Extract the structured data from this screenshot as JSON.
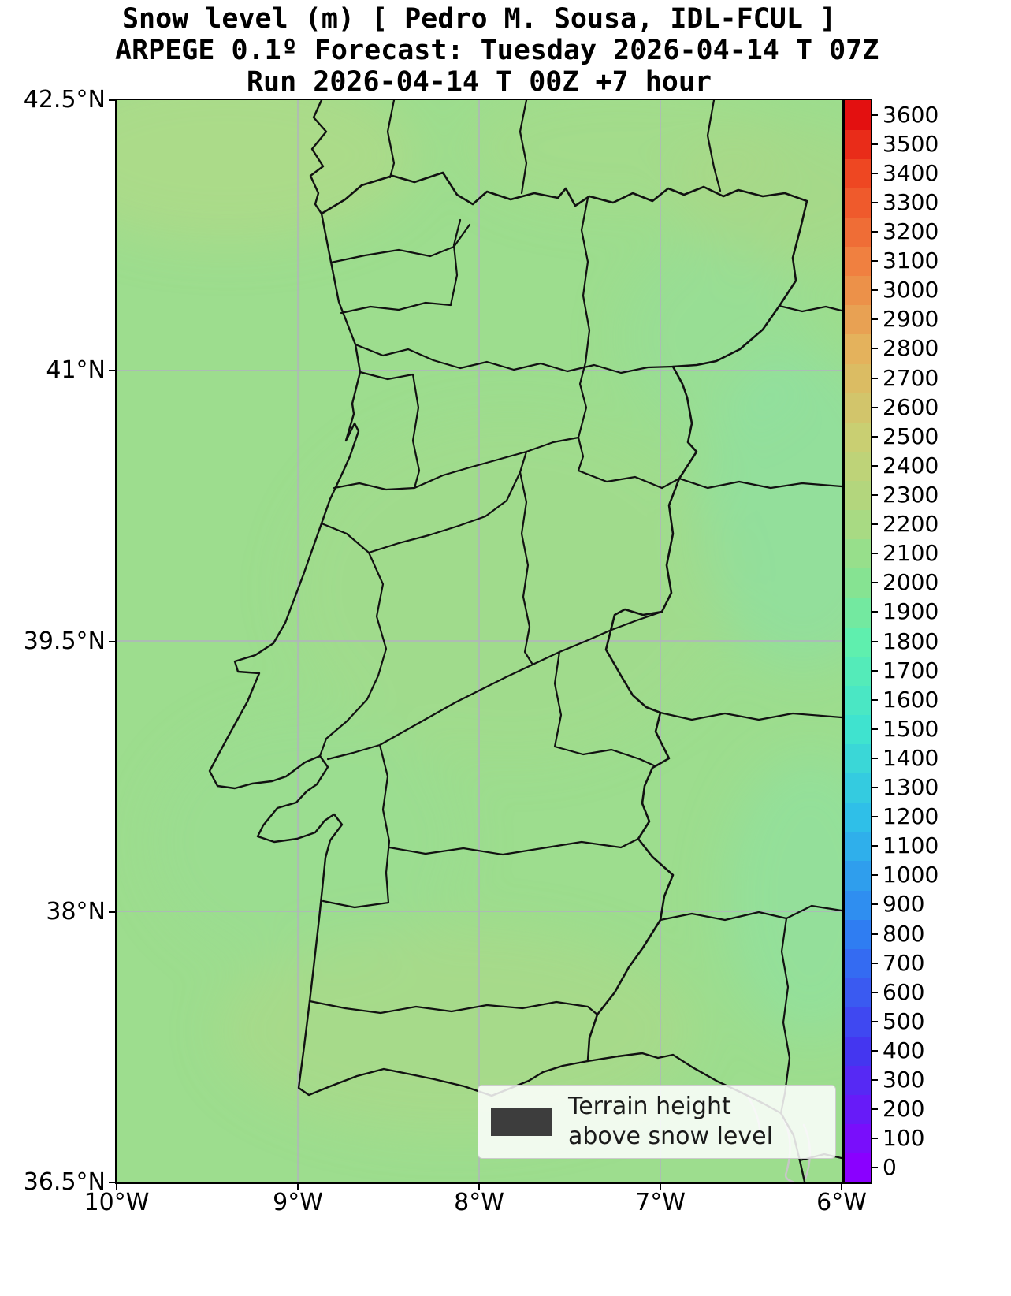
{
  "figure": {
    "title_line1": "Snow level (m) [ Pedro M. Sousa, IDL-FCUL ]",
    "title_line2": "ARPEGE 0.1º Forecast: Tuesday 2026-04-14 T 07Z",
    "title_line3": "Run 2026-04-14 T 00Z +7 hour"
  },
  "axes": {
    "lat_ticks": [
      "42.5°N",
      "41°N",
      "39.5°N",
      "38°N",
      "36.5°N"
    ],
    "lon_ticks": [
      "10°W",
      "9°W",
      "8°W",
      "7°W",
      "6°W"
    ]
  },
  "legend": {
    "line1": "Terrain height",
    "line2": "above snow level",
    "swatch_color": "#3d3d3d"
  },
  "colors": {
    "field_base_green": "#9ddd8e",
    "boundary": "#111111",
    "gridline": "#b2b2c0",
    "background": "#ffffff"
  },
  "chart_data": {
    "type": "heatmap",
    "title": "Snow level (m) [ Pedro M. Sousa, IDL-FCUL ]",
    "subtitle": "ARPEGE 0.1º Forecast: Tuesday 2026-04-14 T 07Z",
    "run_info": "Run 2026-04-14 T 00Z +7 hour",
    "model": "ARPEGE 0.1º",
    "variable": "Snow level (m)",
    "region": "Portugal and western Iberia with district/province boundaries",
    "x_axis": {
      "ticks": [
        "10°W",
        "9°W",
        "8°W",
        "7°W",
        "6°W"
      ],
      "range_deg": [
        -10,
        -6
      ]
    },
    "y_axis": {
      "ticks": [
        "36.5°N",
        "38°N",
        "39.5°N",
        "41°N",
        "42.5°N"
      ],
      "range_deg": [
        36.5,
        42.5
      ]
    },
    "grid": true,
    "legend": {
      "label": "Terrain height above snow level"
    },
    "colorbar": {
      "units": "m",
      "min": 0,
      "max": 3600,
      "tick_step": 100,
      "ticks": [
        0,
        100,
        200,
        300,
        400,
        500,
        600,
        700,
        800,
        900,
        1000,
        1100,
        1200,
        1300,
        1400,
        1500,
        1600,
        1700,
        1800,
        1900,
        2000,
        2100,
        2200,
        2300,
        2400,
        2500,
        2600,
        2700,
        2800,
        2900,
        3000,
        3100,
        3200,
        3300,
        3400,
        3500,
        3600
      ],
      "anchors": [
        [
          0,
          "#8a00ff"
        ],
        [
          400,
          "#4436f0"
        ],
        [
          800,
          "#2f7df2"
        ],
        [
          1200,
          "#2fbfe8"
        ],
        [
          1500,
          "#3fe3cf"
        ],
        [
          1800,
          "#5fefae"
        ],
        [
          2000,
          "#86e392"
        ],
        [
          2200,
          "#a8da83"
        ],
        [
          2500,
          "#c9cf72"
        ],
        [
          2800,
          "#e4b25c"
        ],
        [
          3100,
          "#f08040"
        ],
        [
          3400,
          "#ee4722"
        ],
        [
          3600,
          "#e31010"
        ]
      ]
    },
    "field_summary": {
      "units": "m",
      "description": "Snow level nearly uniform (light green ~1950-2250 m) over the entire domain, land and sea",
      "approx_range": [
        1900,
        2300
      ],
      "samples": [
        {
          "lon": -9.6,
          "lat": 42.3,
          "value_m": 2200
        },
        {
          "lon": -7.2,
          "lat": 42.2,
          "value_m": 2150
        },
        {
          "lon": -8.4,
          "lat": 41.2,
          "value_m": 2100
        },
        {
          "lon": -6.3,
          "lat": 40.3,
          "value_m": 1950
        },
        {
          "lon": -9.2,
          "lat": 39.4,
          "value_m": 2050
        },
        {
          "lon": -7.6,
          "lat": 38.8,
          "value_m": 2100
        },
        {
          "lon": -6.4,
          "lat": 38.0,
          "value_m": 1950
        },
        {
          "lon": -8.2,
          "lat": 37.1,
          "value_m": 2150
        }
      ]
    }
  }
}
